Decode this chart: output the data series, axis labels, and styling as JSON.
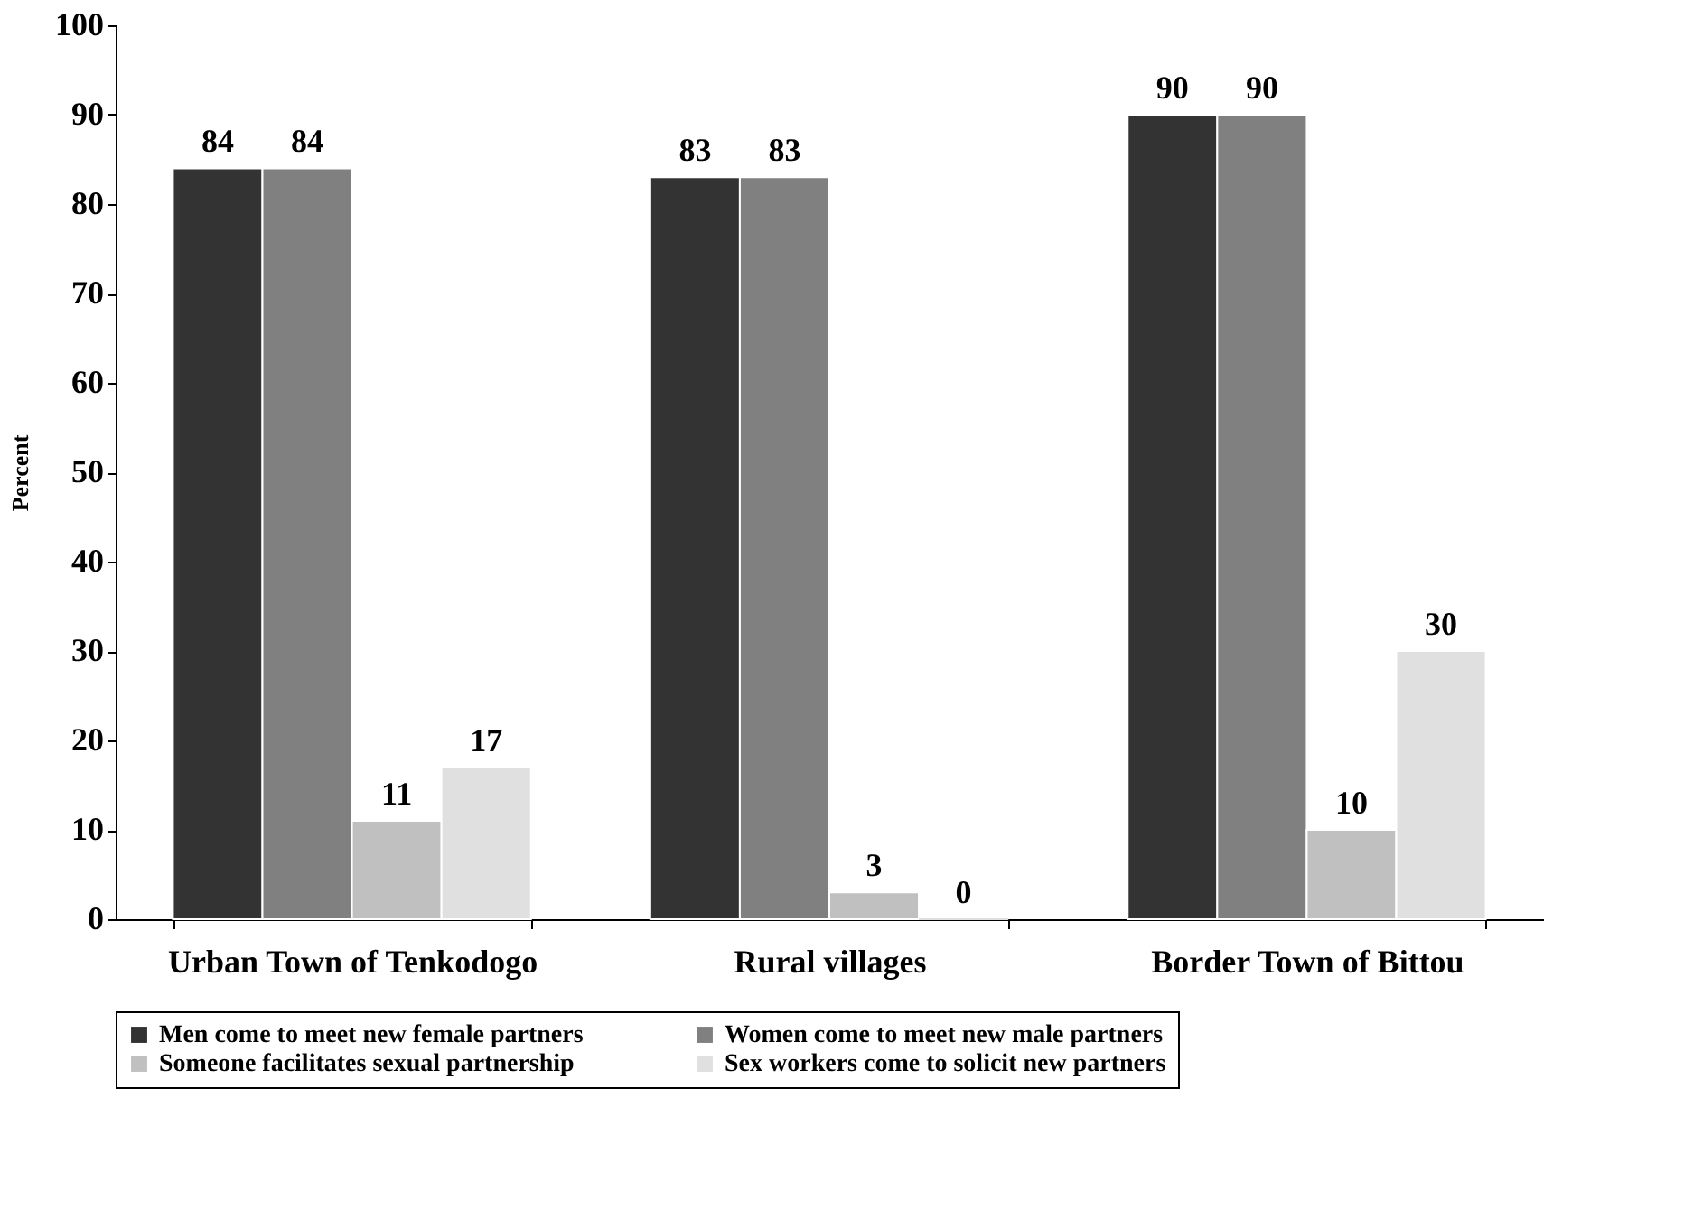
{
  "chart_data": {
    "type": "bar",
    "ylabel": "Percent",
    "categories": [
      "Urban Town of Tenkodogo",
      "Rural villages",
      "Border Town of Bittou"
    ],
    "series": [
      {
        "name": "Men come to meet new female partners",
        "color": "#333333",
        "values": [
          84,
          83,
          90
        ]
      },
      {
        "name": "Women come to meet new male partners",
        "color": "#808080",
        "values": [
          84,
          83,
          90
        ]
      },
      {
        "name": "Someone facilitates sexual partnership",
        "color": "#c0c0c0",
        "values": [
          11,
          3,
          10
        ]
      },
      {
        "name": "Sex workers come to solicit new partners",
        "color": "#e0e0e0",
        "values": [
          17,
          0,
          30
        ]
      }
    ],
    "ylim": [
      0,
      100
    ],
    "yticks": [
      0,
      10,
      20,
      30,
      40,
      50,
      60,
      70,
      80,
      90,
      100
    ],
    "grid": false,
    "legend": "bottom",
    "data_labels": true
  }
}
